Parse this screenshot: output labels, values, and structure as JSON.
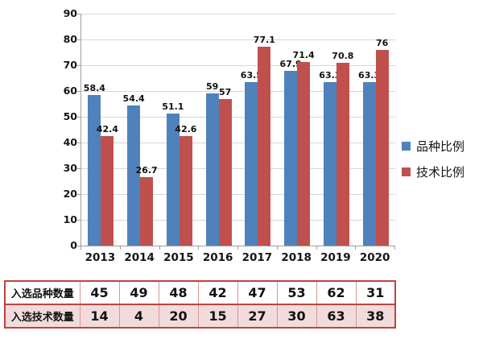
{
  "chart_data": {
    "type": "bar",
    "title": "",
    "categories": [
      "2013",
      "2014",
      "2015",
      "2016",
      "2017",
      "2018",
      "2019",
      "2020"
    ],
    "series": [
      {
        "name": "品种比例",
        "color": "#4f81bd",
        "values": [
          58.4,
          54.4,
          51.1,
          59,
          63.5,
          67.9,
          63.3,
          63.3
        ]
      },
      {
        "name": "技术比例",
        "color": "#c0504d",
        "values": [
          42.4,
          26.7,
          42.6,
          57,
          77.1,
          71.4,
          70.8,
          76
        ]
      }
    ],
    "xlabel": "",
    "ylabel": "",
    "ylim": [
      0,
      90
    ],
    "ytick_step": 10,
    "grid": true,
    "legend_position": "right",
    "data_labels": true
  },
  "table": {
    "rows": [
      {
        "label": "入选品种数量",
        "values": [
          "45",
          "49",
          "48",
          "42",
          "47",
          "53",
          "62",
          "31"
        ]
      },
      {
        "label": "入选技术数量",
        "values": [
          "14",
          "4",
          "20",
          "15",
          "27",
          "30",
          "63",
          "38"
        ]
      }
    ]
  },
  "colors": {
    "series1": "#4f81bd",
    "series2": "#c0504d",
    "gridline": "#d6d6d6",
    "axis": "#9e9e9e",
    "table_outer_border": "#bf4340",
    "table_inner_border": "#d89694",
    "table_alt_row_bg": "#f2dcdb",
    "text": "#111111"
  }
}
